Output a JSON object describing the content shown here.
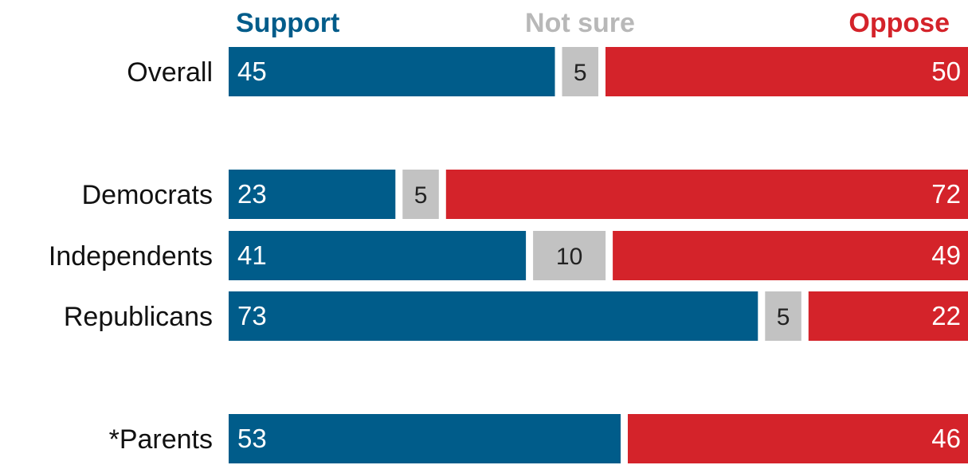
{
  "chart_data": {
    "type": "bar",
    "orientation": "horizontal",
    "stacked": true,
    "categories": [
      "Overall",
      "Democrats",
      "Independents",
      "Republicans",
      "*Parents"
    ],
    "series": [
      {
        "name": "Support",
        "color": "#005c8a",
        "values": [
          45,
          23,
          41,
          73,
          53
        ]
      },
      {
        "name": "Not sure",
        "color": "#c2c2c2",
        "values": [
          5,
          5,
          10,
          5,
          null
        ]
      },
      {
        "name": "Oppose",
        "color": "#d4232a",
        "values": [
          50,
          72,
          49,
          22,
          46
        ]
      }
    ],
    "xlim": [
      0,
      100
    ],
    "grid": false,
    "legend_position": "top"
  },
  "colors": {
    "support": "#005c8a",
    "not_sure_bar": "#c2c2c2",
    "not_sure_header": "#b8b8b8",
    "oppose": "#d4232a",
    "category_text": "#111111",
    "value_text_light": "#ffffff",
    "value_text_dark": "#222222"
  }
}
